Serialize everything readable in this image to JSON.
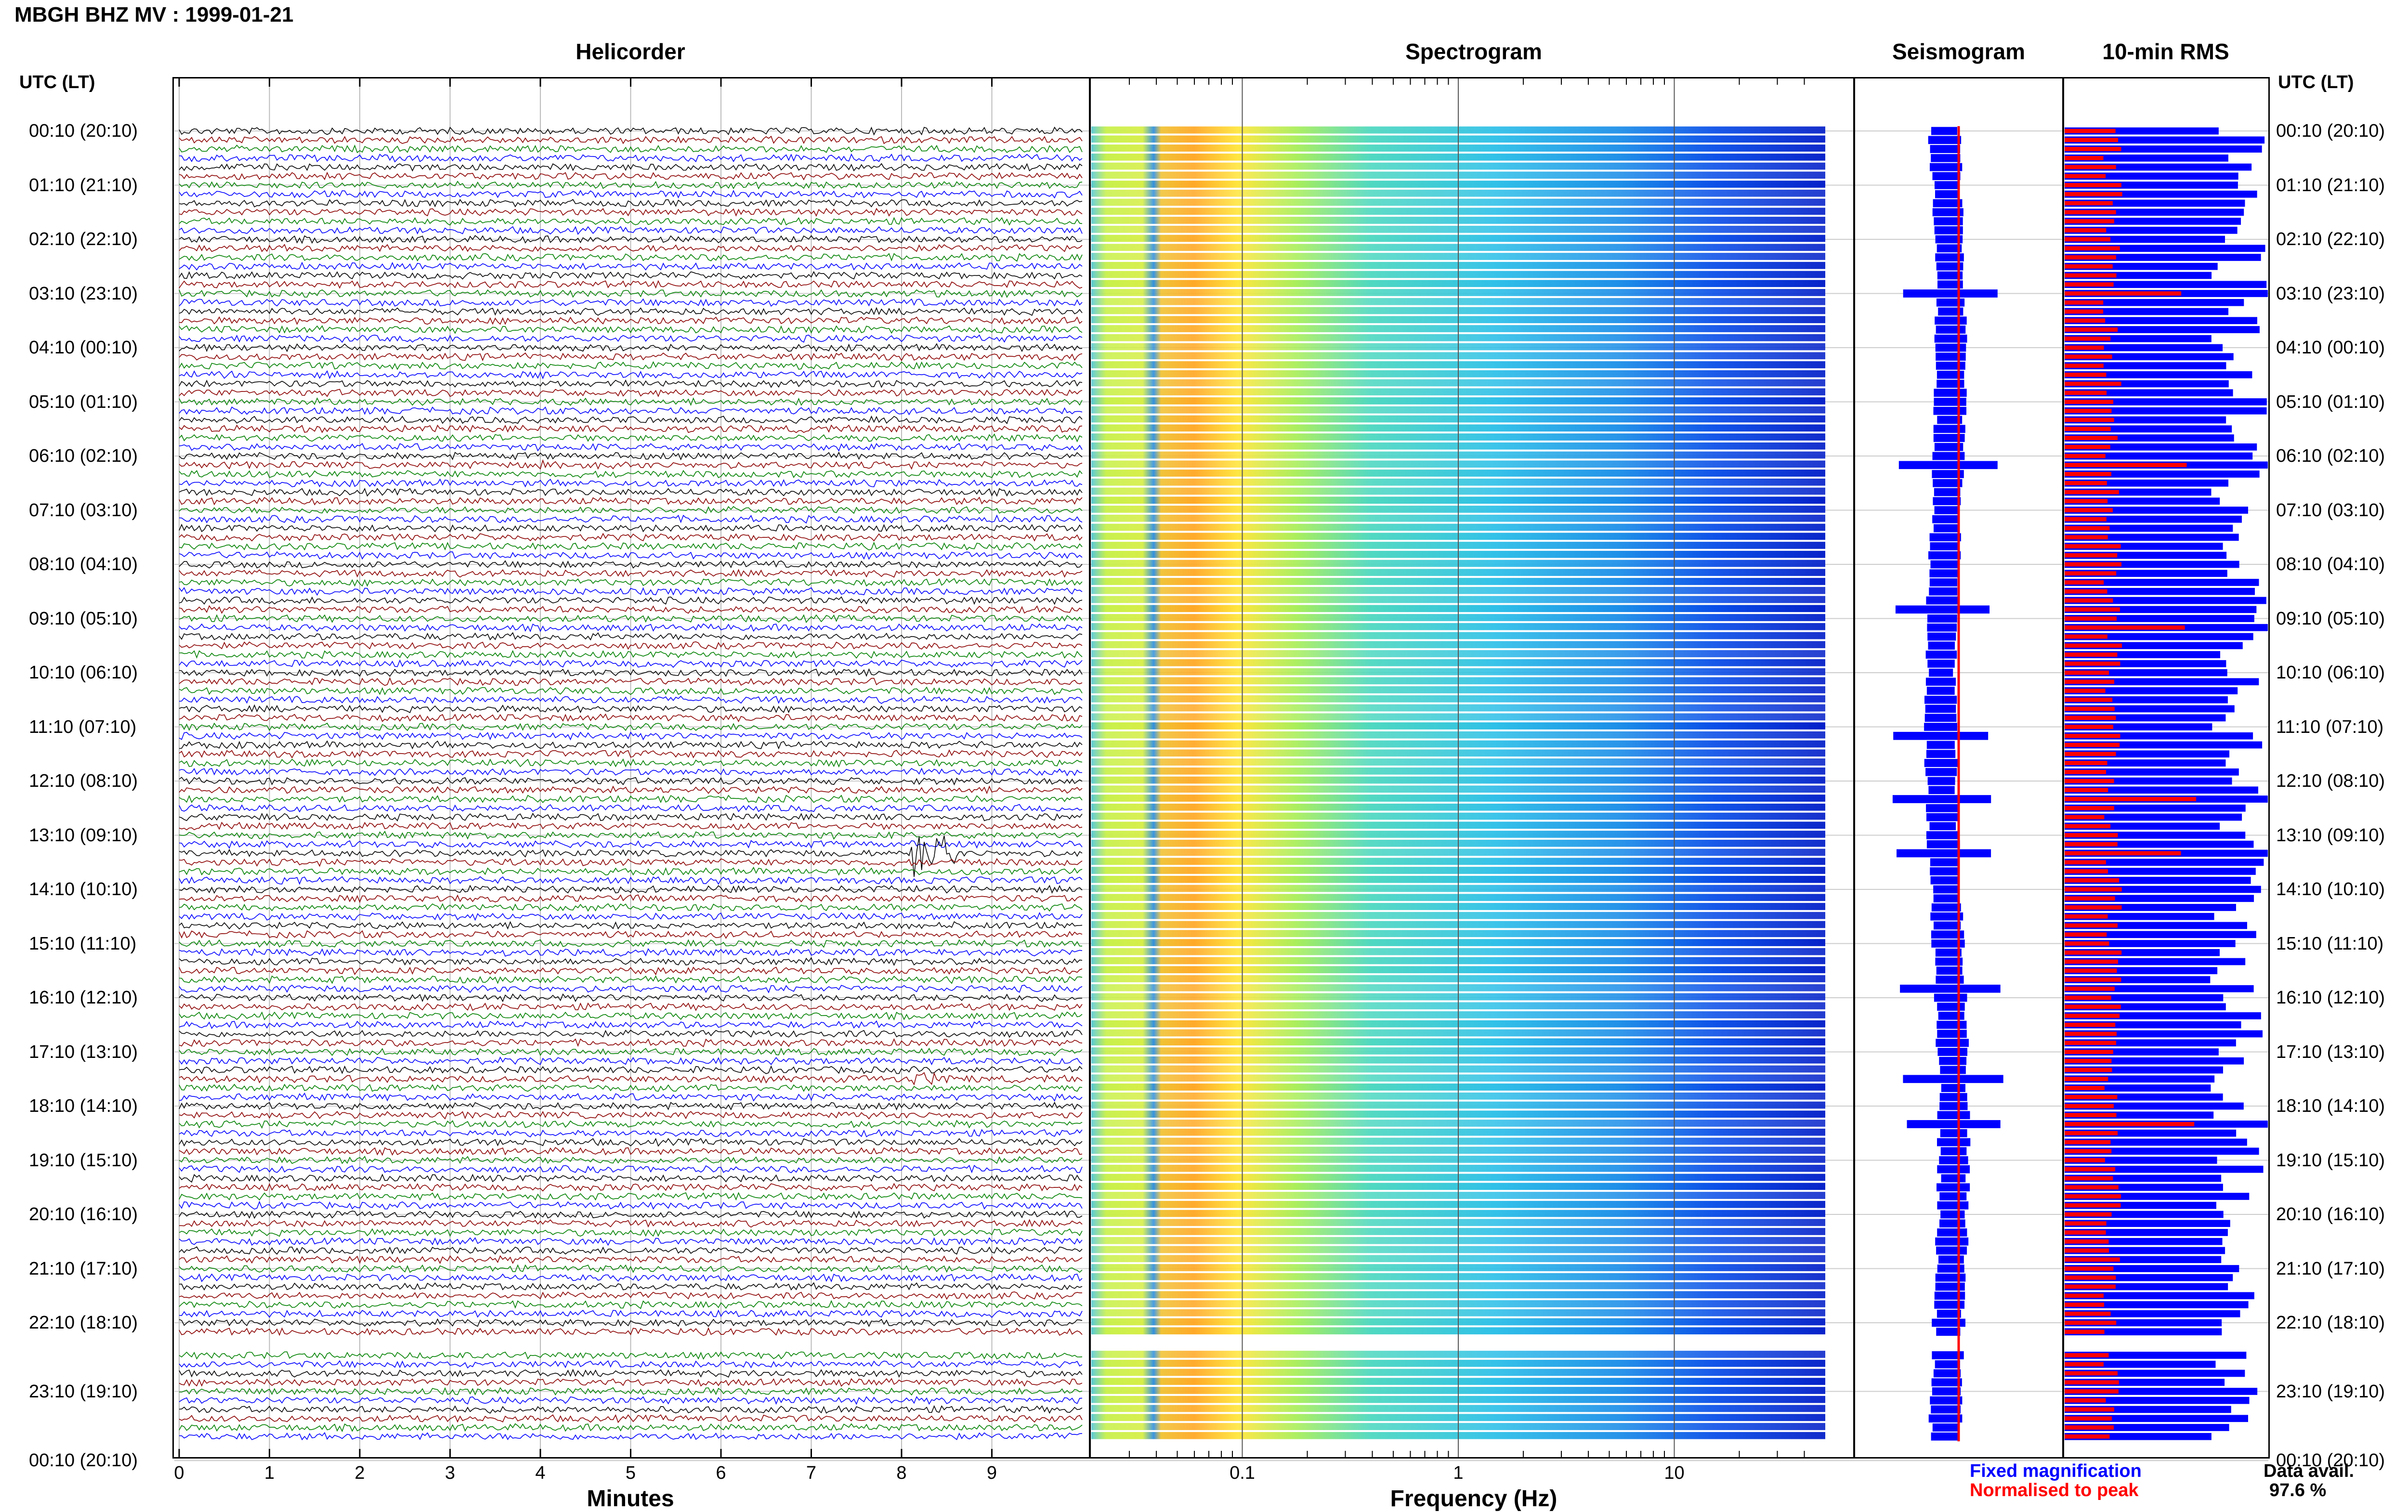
{
  "header": {
    "title": "MBGH BHZ MV : 1999-01-21"
  },
  "panels": {
    "helicorder": "Helicorder",
    "spectrogram": "Spectrogram",
    "seismogram": "Seismogram",
    "rms": "10-min RMS"
  },
  "axes": {
    "utc_label_left": "UTC (LT)",
    "utc_label_right": "UTC (LT)",
    "x_helicorder": "Minutes",
    "x_spectrogram": "Frequency (Hz)"
  },
  "legend": {
    "fixed": "Fixed magnification",
    "normalised": "Normalised to peak",
    "data_avail_label": "Data avail.",
    "data_avail_value": "97.6 %"
  },
  "colors": {
    "trace_cycle": [
      "#000000",
      "#8b0000",
      "#008000",
      "#0000ff"
    ],
    "rms_fixed": "#0000ff",
    "rms_normalised": "#ff0000",
    "seismogram_fixed": "#0000ff",
    "seismogram_normalised": "#ff0000"
  },
  "chart_data": {
    "type": "helicorder_spectrogram_panel",
    "rows_per_hour": 6,
    "row_labels": [
      "00:10 (20:10)",
      "01:10 (21:10)",
      "02:10 (22:10)",
      "03:10 (23:10)",
      "04:10 (00:10)",
      "05:10 (01:10)",
      "06:10 (02:10)",
      "07:10 (03:10)",
      "08:10 (04:10)",
      "09:10 (05:10)",
      "10:10 (06:10)",
      "11:10 (07:10)",
      "12:10 (08:10)",
      "13:10 (09:10)",
      "14:10 (10:10)",
      "15:10 (11:10)",
      "16:10 (12:10)",
      "17:10 (13:10)",
      "18:10 (14:10)",
      "19:10 (15:10)",
      "20:10 (16:10)",
      "21:10 (17:10)",
      "22:10 (18:10)",
      "23:10 (19:10)",
      "00:10 (20:10)"
    ],
    "helicorder": {
      "xlabel": "Minutes",
      "xlim": [
        0,
        10
      ],
      "xticks": [
        0,
        1,
        2,
        3,
        4,
        5,
        6,
        7,
        8,
        9
      ],
      "gap_after_row": 133,
      "events": [
        {
          "row": 18,
          "start_min": 7.0,
          "dur_min": 1.6,
          "amp": 7
        },
        {
          "row": 24,
          "start_min": 1.8,
          "dur_min": 0.8,
          "amp": 3
        },
        {
          "row": 37,
          "start_min": 3.9,
          "dur_min": 0.9,
          "amp": 9
        },
        {
          "row": 39,
          "start_min": 7.7,
          "dur_min": 1.2,
          "amp": 4
        },
        {
          "row": 53,
          "start_min": 9.8,
          "dur_min": 0.2,
          "amp": 6
        },
        {
          "row": 56,
          "start_min": 4.2,
          "dur_min": 0.4,
          "amp": 3
        },
        {
          "row": 67,
          "start_min": 8.0,
          "dur_min": 0.5,
          "amp": 3
        },
        {
          "row": 80,
          "start_min": 8.1,
          "dur_min": 0.5,
          "amp": 60
        },
        {
          "row": 95,
          "start_min": 8.1,
          "dur_min": 0.3,
          "amp": 8
        },
        {
          "row": 105,
          "start_min": 8.1,
          "dur_min": 0.8,
          "amp": 14
        },
        {
          "row": 110,
          "start_min": 8.1,
          "dur_min": 0.4,
          "amp": 6
        },
        {
          "row": 137,
          "start_min": 7.0,
          "dur_min": 0.7,
          "amp": 3
        }
      ]
    },
    "spectrogram": {
      "xlabel": "Frequency (Hz)",
      "scale": "log",
      "xlim": [
        0.02,
        50
      ],
      "xtick_labels": [
        "0.1",
        "1",
        "10"
      ],
      "xtick_values": [
        0.1,
        1,
        10
      ]
    },
    "seismogram": {
      "x": [
        "fixed magnification",
        "normalised to peak"
      ],
      "spikes_rows": [
        18,
        37,
        53,
        67,
        74,
        80,
        95,
        105,
        110
      ]
    },
    "rms": {
      "series": [
        {
          "name": "Fixed magnification"
        },
        {
          "name": "Normalised to peak"
        }
      ],
      "peak_rows": [
        18,
        37,
        55,
        74,
        80,
        110
      ]
    },
    "data_availability_percent": 97.6
  }
}
